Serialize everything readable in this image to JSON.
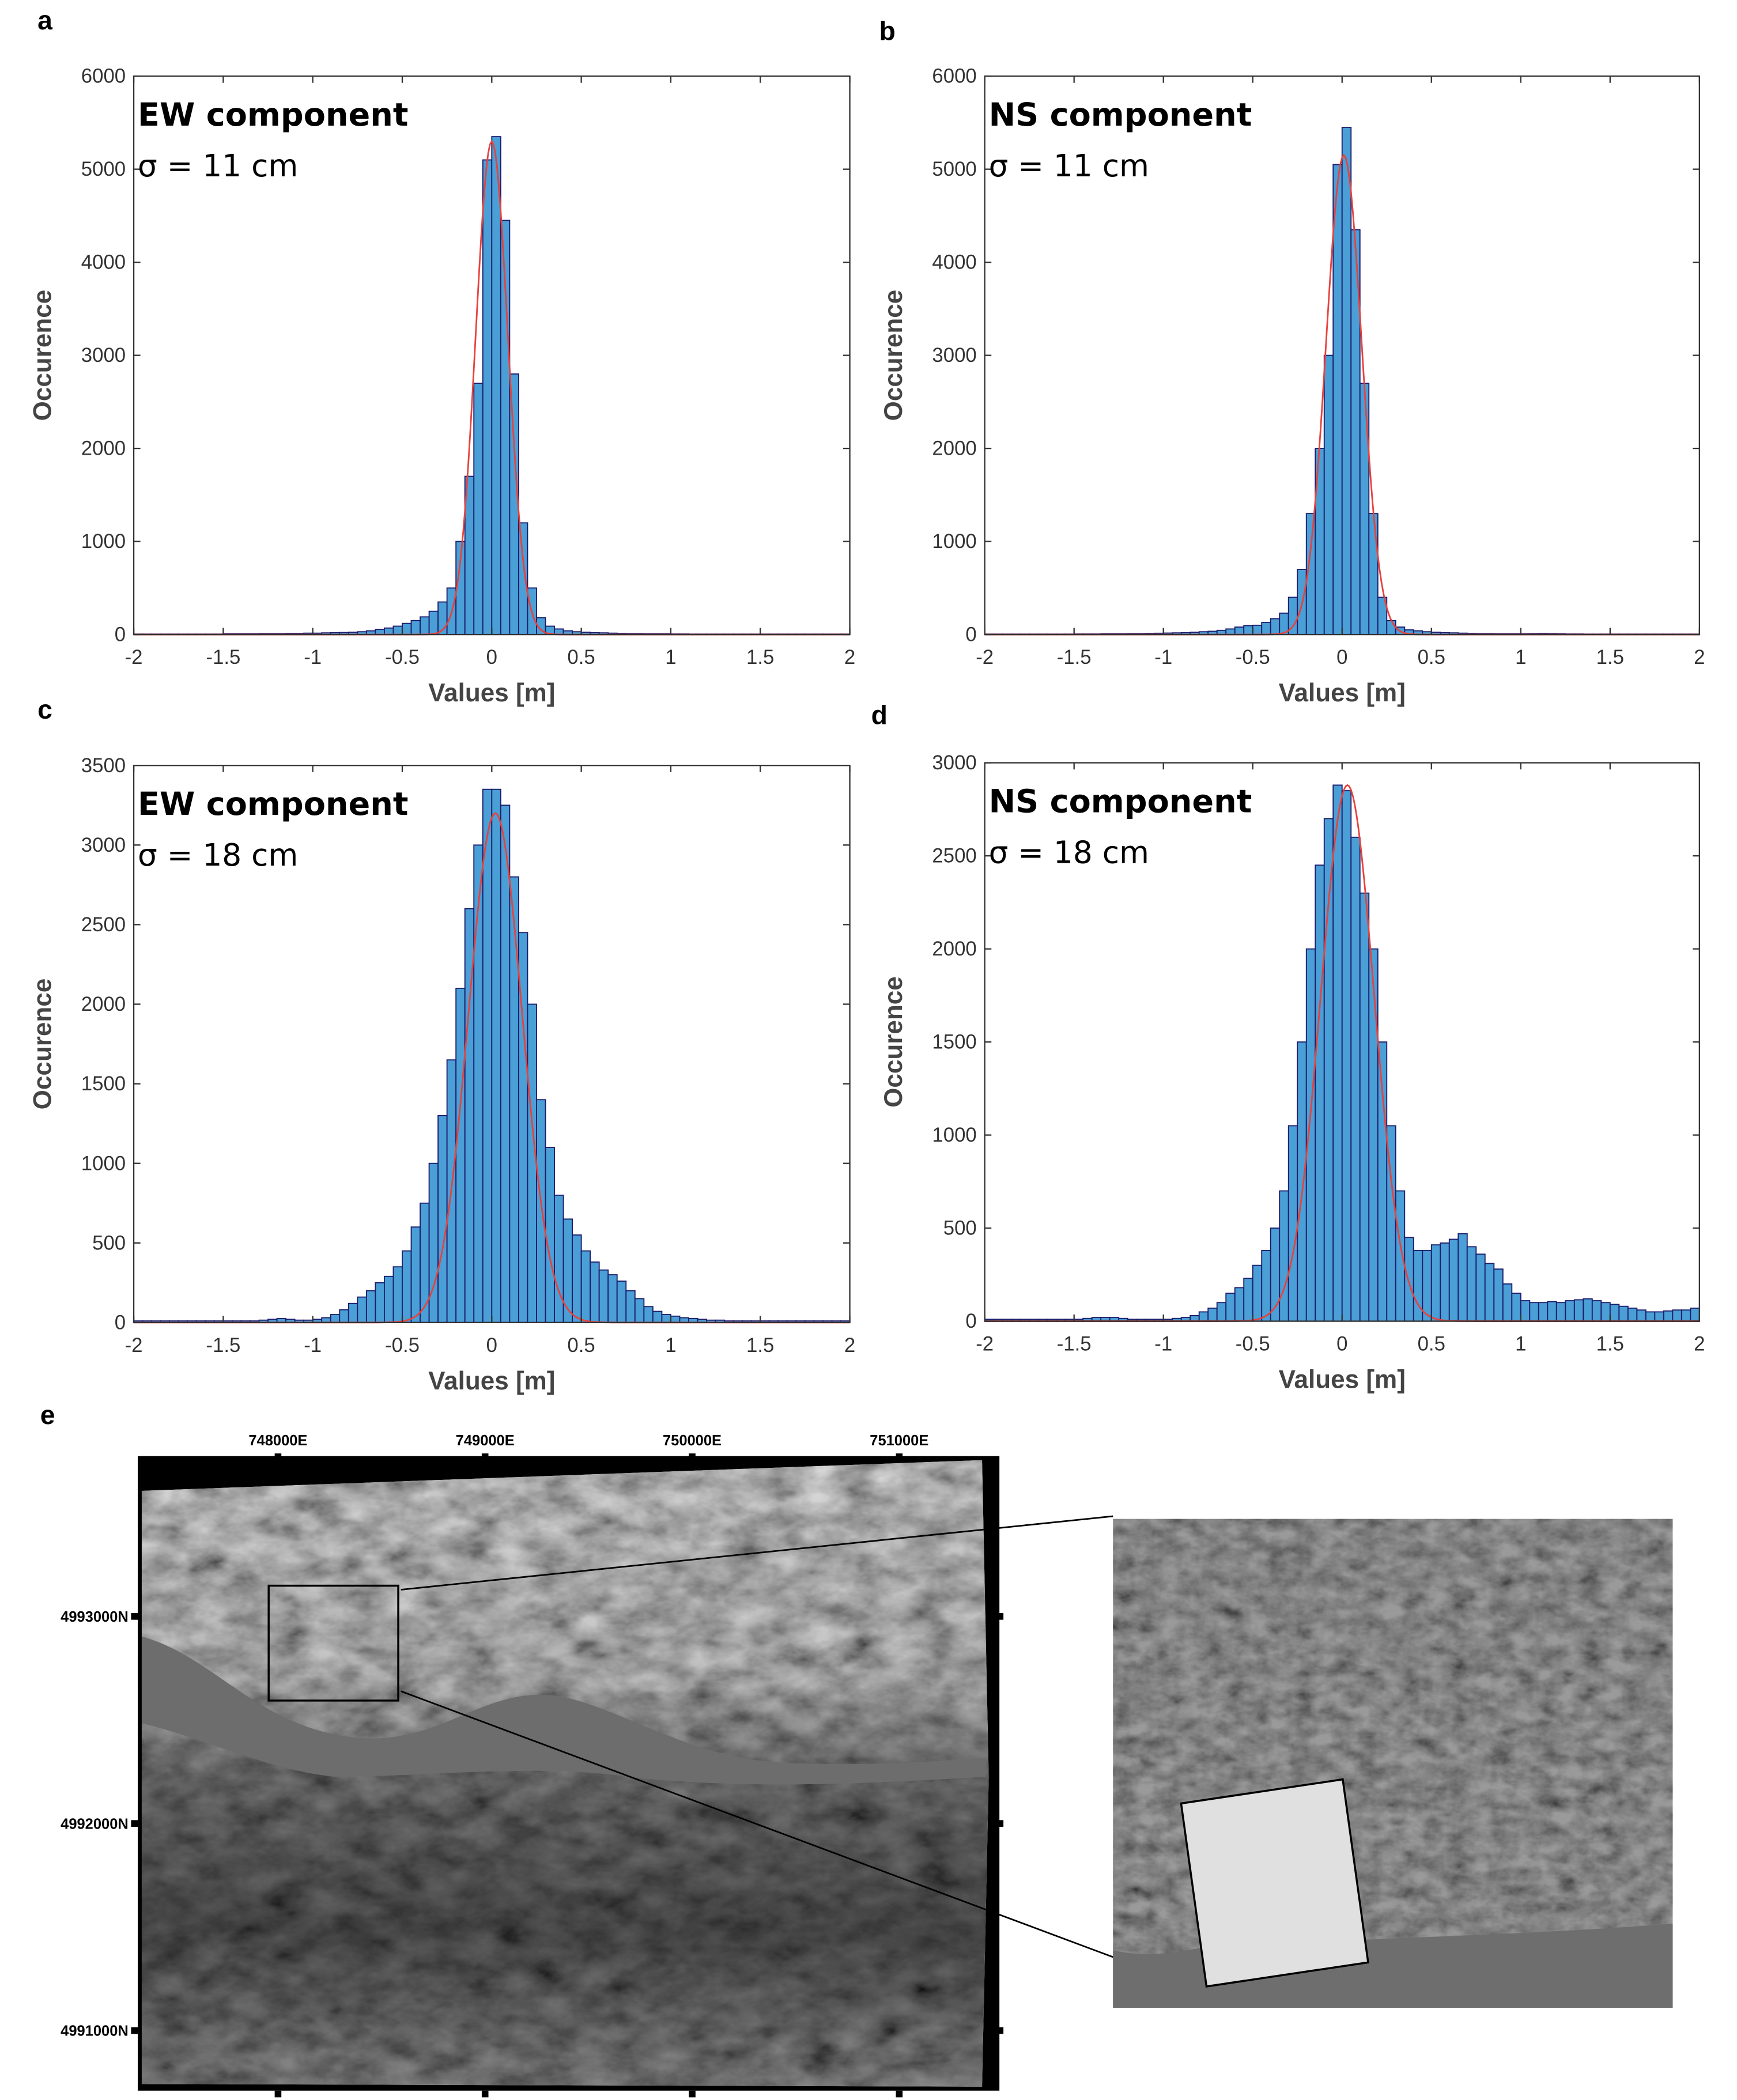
{
  "chart_data": [
    {
      "type": "histogram",
      "panel": "a",
      "annotations": [
        "EW component",
        "σ = 11 cm"
      ],
      "x_label": "Values [m]",
      "y_label": "Occurence",
      "bins": [
        -2,
        -1.95,
        -1.9,
        -1.85,
        -1.8,
        -1.75,
        -1.7,
        -1.65,
        -1.6,
        -1.55,
        -1.5,
        -1.45,
        -1.4,
        -1.35,
        -1.3,
        -1.25,
        -1.2,
        -1.15,
        -1.1,
        -1.05,
        -1,
        -0.95,
        -0.9,
        -0.85,
        -0.8,
        -0.75,
        -0.7,
        -0.65,
        -0.6,
        -0.55,
        -0.5,
        -0.45,
        -0.4,
        -0.35,
        -0.3,
        -0.25,
        -0.2,
        -0.15,
        -0.1,
        -0.05,
        0,
        0.05,
        0.1,
        0.15,
        0.2,
        0.25,
        0.3,
        0.35,
        0.4,
        0.45,
        0.5,
        0.55,
        0.6,
        0.65,
        0.7,
        0.75,
        0.8,
        0.85,
        0.9,
        0.95,
        1,
        1.05,
        1.1,
        1.15,
        1.2,
        1.25,
        1.3,
        1.35,
        1.4,
        1.45,
        1.5,
        1.55,
        1.6,
        1.65,
        1.7,
        1.75,
        1.8,
        1.85,
        1.9,
        1.95,
        2
      ],
      "values": [
        5,
        5,
        5,
        5,
        5,
        5,
        5,
        5,
        5,
        5,
        8,
        8,
        8,
        8,
        10,
        10,
        10,
        12,
        12,
        15,
        15,
        18,
        20,
        22,
        25,
        30,
        40,
        55,
        70,
        90,
        120,
        150,
        190,
        250,
        350,
        500,
        1000,
        1700,
        2700,
        5100,
        5350,
        4450,
        2800,
        1200,
        500,
        180,
        90,
        60,
        40,
        30,
        25,
        20,
        18,
        15,
        12,
        10,
        10,
        8,
        8,
        8,
        6,
        6,
        5,
        5,
        5,
        5,
        5,
        5,
        5,
        5,
        5,
        5,
        5,
        5,
        5,
        5,
        5,
        5,
        5,
        5
      ],
      "color": "#4a9fd6",
      "edge_color": "#1c1c6b",
      "fit": {
        "color": "#e8413c",
        "mean": 0,
        "sigma": 0.09,
        "peak": 5300
      },
      "xlim": [
        -2,
        2
      ],
      "xticks": [
        -2,
        -1.5,
        -1,
        -0.5,
        0,
        0.5,
        1,
        1.5,
        2
      ],
      "ylim": [
        0,
        6000
      ],
      "yticks": [
        0,
        1000,
        2000,
        3000,
        4000,
        5000,
        6000
      ]
    },
    {
      "type": "histogram",
      "panel": "b",
      "annotations": [
        "NS component",
        "σ = 11 cm"
      ],
      "x_label": "Values [m]",
      "y_label": "Occurence",
      "bins": [
        -2,
        -1.95,
        -1.9,
        -1.85,
        -1.8,
        -1.75,
        -1.7,
        -1.65,
        -1.6,
        -1.55,
        -1.5,
        -1.45,
        -1.4,
        -1.35,
        -1.3,
        -1.25,
        -1.2,
        -1.15,
        -1.1,
        -1.05,
        -1,
        -0.95,
        -0.9,
        -0.85,
        -0.8,
        -0.75,
        -0.7,
        -0.65,
        -0.6,
        -0.55,
        -0.5,
        -0.45,
        -0.4,
        -0.35,
        -0.3,
        -0.25,
        -0.2,
        -0.15,
        -0.1,
        -0.05,
        0,
        0.05,
        0.1,
        0.15,
        0.2,
        0.25,
        0.3,
        0.35,
        0.4,
        0.45,
        0.5,
        0.55,
        0.6,
        0.65,
        0.7,
        0.75,
        0.8,
        0.85,
        0.9,
        0.95,
        1,
        1.05,
        1.1,
        1.15,
        1.2,
        1.25,
        1.3,
        1.35,
        1.4,
        1.45,
        1.5,
        1.55,
        1.6,
        1.65,
        1.7,
        1.75,
        1.8,
        1.85,
        1.9,
        1.95,
        2
      ],
      "values": [
        5,
        5,
        5,
        5,
        5,
        5,
        5,
        5,
        5,
        5,
        6,
        6,
        6,
        8,
        8,
        8,
        10,
        10,
        12,
        14,
        16,
        18,
        20,
        25,
        30,
        35,
        45,
        60,
        80,
        95,
        100,
        130,
        170,
        230,
        400,
        700,
        1300,
        2000,
        3000,
        5050,
        5450,
        4350,
        2700,
        1300,
        400,
        150,
        80,
        50,
        40,
        30,
        25,
        20,
        18,
        15,
        12,
        10,
        10,
        8,
        8,
        8,
        8,
        10,
        12,
        10,
        8,
        6,
        6,
        5,
        5,
        5,
        5,
        5,
        5,
        5,
        5,
        5,
        5,
        5,
        5,
        5
      ],
      "color": "#4a9fd6",
      "edge_color": "#1c1c6b",
      "fit": {
        "color": "#e8413c",
        "mean": 0.01,
        "sigma": 0.1,
        "peak": 5150
      },
      "xlim": [
        -2,
        2
      ],
      "xticks": [
        -2,
        -1.5,
        -1,
        -0.5,
        0,
        0.5,
        1,
        1.5,
        2
      ],
      "ylim": [
        0,
        6000
      ],
      "yticks": [
        0,
        1000,
        2000,
        3000,
        4000,
        5000,
        6000
      ]
    },
    {
      "type": "histogram",
      "panel": "c",
      "annotations": [
        "EW component",
        "σ = 18 cm"
      ],
      "x_label": "Values [m]",
      "y_label": "Occurence",
      "bins": [
        -2,
        -1.95,
        -1.9,
        -1.85,
        -1.8,
        -1.75,
        -1.7,
        -1.65,
        -1.6,
        -1.55,
        -1.5,
        -1.45,
        -1.4,
        -1.35,
        -1.3,
        -1.25,
        -1.2,
        -1.15,
        -1.1,
        -1.05,
        -1,
        -0.95,
        -0.9,
        -0.85,
        -0.8,
        -0.75,
        -0.7,
        -0.65,
        -0.6,
        -0.55,
        -0.5,
        -0.45,
        -0.4,
        -0.35,
        -0.3,
        -0.25,
        -0.2,
        -0.15,
        -0.1,
        -0.05,
        0,
        0.05,
        0.1,
        0.15,
        0.2,
        0.25,
        0.3,
        0.35,
        0.4,
        0.45,
        0.5,
        0.55,
        0.6,
        0.65,
        0.7,
        0.75,
        0.8,
        0.85,
        0.9,
        0.95,
        1,
        1.05,
        1.1,
        1.15,
        1.2,
        1.25,
        1.3,
        1.35,
        1.4,
        1.45,
        1.5,
        1.55,
        1.6,
        1.65,
        1.7,
        1.75,
        1.8,
        1.85,
        1.9,
        1.95,
        2
      ],
      "values": [
        10,
        10,
        10,
        10,
        10,
        10,
        10,
        10,
        10,
        10,
        10,
        10,
        10,
        10,
        15,
        20,
        25,
        20,
        15,
        15,
        20,
        30,
        50,
        80,
        120,
        160,
        200,
        250,
        290,
        350,
        450,
        600,
        750,
        1000,
        1300,
        1650,
        2100,
        2600,
        3000,
        3350,
        3350,
        3250,
        2800,
        2450,
        2000,
        1400,
        1100,
        800,
        650,
        550,
        450,
        380,
        330,
        300,
        260,
        200,
        150,
        100,
        70,
        50,
        40,
        30,
        25,
        20,
        15,
        15,
        10,
        10,
        10,
        10,
        10,
        10,
        10,
        10,
        10,
        10,
        10,
        10,
        10,
        10
      ],
      "color": "#4a9fd6",
      "edge_color": "#1c1c6b",
      "fit": {
        "color": "#e8413c",
        "mean": 0.02,
        "sigma": 0.15,
        "peak": 3200
      },
      "xlim": [
        -2,
        2
      ],
      "xticks": [
        -2,
        -1.5,
        -1,
        -0.5,
        0,
        0.5,
        1,
        1.5,
        2
      ],
      "ylim": [
        0,
        3500
      ],
      "yticks": [
        0,
        500,
        1000,
        1500,
        2000,
        2500,
        3000,
        3500
      ]
    },
    {
      "type": "histogram",
      "panel": "d",
      "annotations": [
        "NS component",
        "σ = 18 cm"
      ],
      "x_label": "Values [m]",
      "y_label": "Occurence",
      "bins": [
        -2,
        -1.95,
        -1.9,
        -1.85,
        -1.8,
        -1.75,
        -1.7,
        -1.65,
        -1.6,
        -1.55,
        -1.5,
        -1.45,
        -1.4,
        -1.35,
        -1.3,
        -1.25,
        -1.2,
        -1.15,
        -1.1,
        -1.05,
        -1,
        -0.95,
        -0.9,
        -0.85,
        -0.8,
        -0.75,
        -0.7,
        -0.65,
        -0.6,
        -0.55,
        -0.5,
        -0.45,
        -0.4,
        -0.35,
        -0.3,
        -0.25,
        -0.2,
        -0.15,
        -0.1,
        -0.05,
        0,
        0.05,
        0.1,
        0.15,
        0.2,
        0.25,
        0.3,
        0.35,
        0.4,
        0.45,
        0.5,
        0.55,
        0.6,
        0.65,
        0.7,
        0.75,
        0.8,
        0.85,
        0.9,
        0.95,
        1,
        1.05,
        1.1,
        1.15,
        1.2,
        1.25,
        1.3,
        1.35,
        1.4,
        1.45,
        1.5,
        1.55,
        1.6,
        1.65,
        1.7,
        1.75,
        1.8,
        1.85,
        1.9,
        1.95,
        2
      ],
      "values": [
        10,
        10,
        10,
        10,
        10,
        10,
        10,
        10,
        10,
        10,
        10,
        15,
        20,
        20,
        20,
        15,
        10,
        10,
        10,
        10,
        10,
        15,
        20,
        30,
        50,
        70,
        100,
        150,
        180,
        230,
        300,
        380,
        500,
        700,
        1050,
        1500,
        2000,
        2450,
        2700,
        2880,
        2850,
        2600,
        2300,
        2000,
        1500,
        1050,
        700,
        450,
        380,
        380,
        410,
        420,
        440,
        470,
        400,
        360,
        310,
        280,
        200,
        150,
        110,
        100,
        100,
        105,
        100,
        110,
        115,
        120,
        110,
        100,
        90,
        80,
        70,
        60,
        50,
        50,
        55,
        60,
        60,
        70
      ],
      "color": "#4a9fd6",
      "edge_color": "#1c1c6b",
      "fit": {
        "color": "#e8413c",
        "mean": 0.03,
        "sigma": 0.15,
        "peak": 2880
      },
      "xlim": [
        -2,
        2
      ],
      "xticks": [
        -2,
        -1.5,
        -1,
        -0.5,
        0,
        0.5,
        1,
        1.5,
        2
      ],
      "ylim": [
        0,
        3000
      ],
      "yticks": [
        0,
        500,
        1000,
        1500,
        2000,
        2500,
        3000
      ]
    }
  ],
  "map": {
    "panel": "e",
    "x_labels": [
      "748000E",
      "749000E",
      "750000E",
      "751000E"
    ],
    "y_labels": [
      "4993000N",
      "4992000N",
      "4991000N"
    ]
  }
}
